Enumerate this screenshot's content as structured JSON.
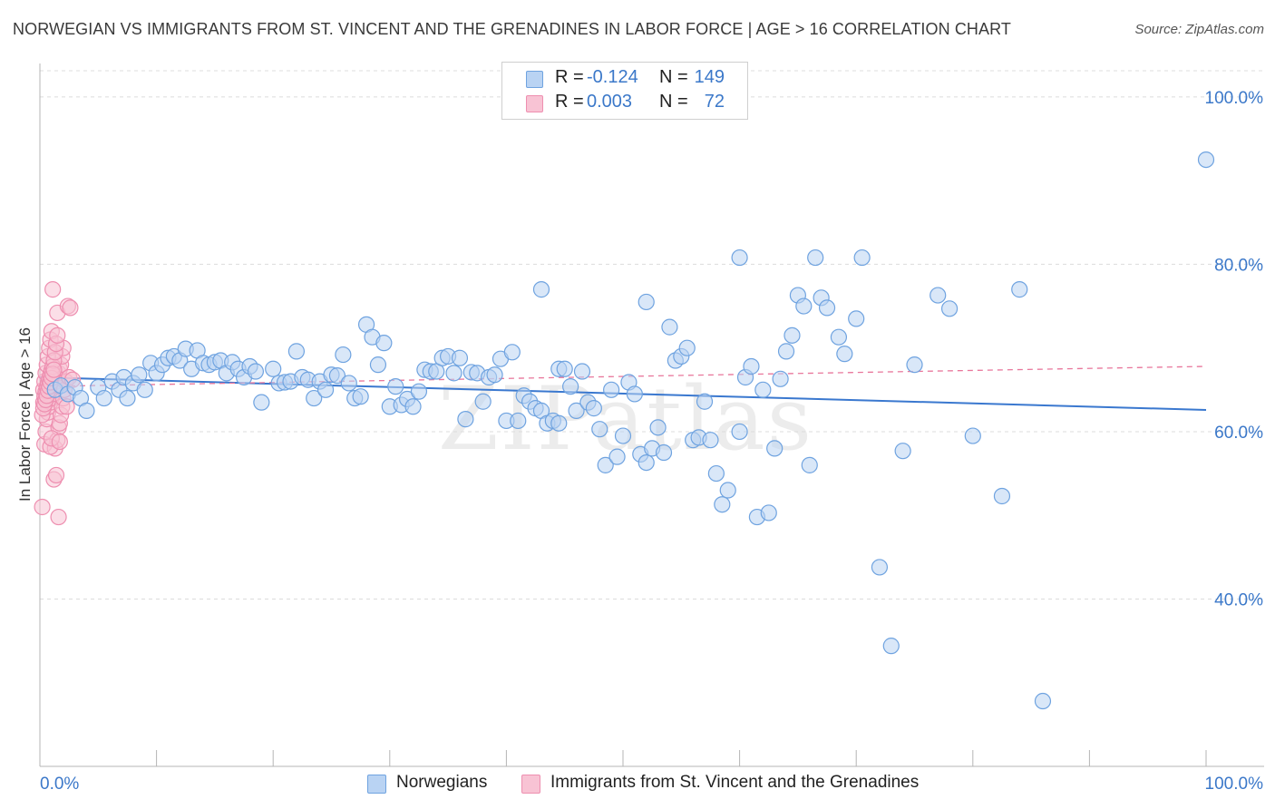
{
  "title": "NORWEGIAN VS IMMIGRANTS FROM ST. VINCENT AND THE GRENADINES IN LABOR FORCE | AGE > 16 CORRELATION CHART",
  "source": "Source: ZipAtlas.com",
  "watermark": "ZIPatlas",
  "stats": [
    {
      "r_label": "R =",
      "r_value": "-0.124",
      "n_label": "N =",
      "n_value": "149",
      "color": "#6fa3e0",
      "fill": "#b9d3f3"
    },
    {
      "r_label": "R =",
      "r_value": "0.003",
      "n_label": "N =",
      "n_value": "72",
      "color": "#ee8fb0",
      "fill": "#f8c3d4"
    }
  ],
  "legend": [
    {
      "label": "Norwegians",
      "color": "#6fa3e0",
      "fill": "#b9d3f3"
    },
    {
      "label": "Immigrants from St. Vincent and the Grenadines",
      "color": "#ee8fb0",
      "fill": "#f8c3d4"
    }
  ],
  "chart_data": {
    "type": "scatter",
    "ylabel": "In Labor Force | Age > 16",
    "xlabel": "",
    "xlim": [
      0,
      100
    ],
    "ylim": [
      20,
      104
    ],
    "x_tick_labels": [
      "0.0%",
      "100.0%"
    ],
    "y_ticks": [
      40,
      60,
      80,
      100
    ],
    "y_tick_labels": [
      "40.0%",
      "60.0%",
      "80.0%",
      "100.0%"
    ],
    "grid": true,
    "series": [
      {
        "name": "Norwegians",
        "color": "#6fa3e0",
        "fill": "#b9d3f3",
        "trend": {
          "x": [
            0,
            100
          ],
          "y": [
            66.5,
            62.6
          ],
          "style": "solid"
        },
        "points": [
          [
            1.3,
            65.0
          ],
          [
            1.8,
            65.5
          ],
          [
            2.4,
            64.5
          ],
          [
            3.0,
            65.3
          ],
          [
            3.5,
            64.0
          ],
          [
            4.0,
            62.5
          ],
          [
            5.0,
            65.3
          ],
          [
            5.5,
            64.0
          ],
          [
            6.2,
            66.0
          ],
          [
            6.8,
            65.0
          ],
          [
            7.2,
            66.5
          ],
          [
            7.5,
            64.0
          ],
          [
            8.0,
            65.8
          ],
          [
            8.5,
            66.8
          ],
          [
            9.0,
            65.0
          ],
          [
            9.5,
            68.2
          ],
          [
            10.0,
            67.0
          ],
          [
            10.5,
            68.0
          ],
          [
            11.0,
            68.8
          ],
          [
            11.5,
            69.0
          ],
          [
            12.0,
            68.5
          ],
          [
            12.5,
            69.9
          ],
          [
            13.0,
            67.5
          ],
          [
            13.5,
            69.7
          ],
          [
            14.0,
            68.2
          ],
          [
            14.5,
            68.0
          ],
          [
            15.0,
            68.3
          ],
          [
            15.5,
            68.5
          ],
          [
            16.0,
            67.0
          ],
          [
            16.5,
            68.3
          ],
          [
            17.0,
            67.5
          ],
          [
            17.5,
            66.5
          ],
          [
            18.0,
            67.8
          ],
          [
            18.5,
            67.2
          ],
          [
            19.0,
            63.5
          ],
          [
            20.0,
            67.5
          ],
          [
            20.5,
            65.8
          ],
          [
            21.0,
            65.9
          ],
          [
            21.5,
            66.0
          ],
          [
            22.0,
            69.6
          ],
          [
            22.5,
            66.5
          ],
          [
            23.0,
            66.2
          ],
          [
            23.5,
            64.0
          ],
          [
            24.0,
            66.0
          ],
          [
            24.5,
            65.0
          ],
          [
            25.0,
            66.8
          ],
          [
            25.5,
            66.7
          ],
          [
            26.0,
            69.2
          ],
          [
            26.5,
            65.8
          ],
          [
            27.0,
            64.0
          ],
          [
            27.5,
            64.2
          ],
          [
            28.0,
            72.8
          ],
          [
            28.5,
            71.3
          ],
          [
            29.0,
            68.0
          ],
          [
            29.5,
            70.6
          ],
          [
            30.0,
            63.0
          ],
          [
            30.5,
            65.4
          ],
          [
            31.0,
            63.2
          ],
          [
            31.5,
            63.9
          ],
          [
            32.0,
            63.0
          ],
          [
            32.5,
            64.8
          ],
          [
            33.0,
            67.4
          ],
          [
            33.5,
            67.2
          ],
          [
            34.0,
            67.2
          ],
          [
            34.5,
            68.8
          ],
          [
            35.0,
            69.0
          ],
          [
            35.5,
            67.0
          ],
          [
            36.0,
            68.8
          ],
          [
            36.5,
            61.5
          ],
          [
            37.0,
            67.1
          ],
          [
            37.5,
            67.0
          ],
          [
            38.0,
            63.6
          ],
          [
            38.5,
            66.5
          ],
          [
            39.0,
            66.8
          ],
          [
            39.5,
            68.7
          ],
          [
            40.0,
            61.3
          ],
          [
            40.5,
            69.5
          ],
          [
            41.0,
            61.3
          ],
          [
            41.5,
            64.3
          ],
          [
            42.0,
            63.6
          ],
          [
            42.5,
            62.8
          ],
          [
            43.0,
            62.5
          ],
          [
            43.5,
            61.0
          ],
          [
            44.0,
            61.3
          ],
          [
            44.5,
            67.5
          ],
          [
            45.0,
            67.5
          ],
          [
            45.5,
            65.4
          ],
          [
            46.0,
            62.5
          ],
          [
            46.5,
            67.2
          ],
          [
            47.0,
            63.5
          ],
          [
            47.5,
            62.8
          ],
          [
            48.0,
            60.3
          ],
          [
            48.5,
            56.0
          ],
          [
            49.0,
            65.0
          ],
          [
            49.5,
            57.0
          ],
          [
            50.0,
            59.5
          ],
          [
            50.5,
            65.9
          ],
          [
            51.0,
            64.5
          ],
          [
            51.5,
            57.3
          ],
          [
            52.0,
            56.3
          ],
          [
            52.5,
            58.0
          ],
          [
            53.0,
            60.5
          ],
          [
            53.5,
            57.5
          ],
          [
            54.5,
            68.5
          ],
          [
            55.0,
            69.0
          ],
          [
            55.5,
            70.0
          ],
          [
            56.0,
            59.0
          ],
          [
            56.5,
            59.3
          ],
          [
            57.0,
            63.6
          ],
          [
            57.5,
            59.0
          ],
          [
            58.0,
            55.0
          ],
          [
            58.5,
            51.3
          ],
          [
            59.0,
            53.0
          ],
          [
            60.0,
            60.0
          ],
          [
            60.5,
            66.5
          ],
          [
            61.0,
            67.8
          ],
          [
            61.5,
            49.8
          ],
          [
            62.0,
            65.0
          ],
          [
            62.5,
            50.3
          ],
          [
            63.0,
            58.0
          ],
          [
            63.5,
            66.3
          ],
          [
            64.0,
            69.6
          ],
          [
            64.5,
            71.5
          ],
          [
            65.0,
            76.3
          ],
          [
            65.5,
            75.0
          ],
          [
            66.0,
            56.0
          ],
          [
            66.5,
            80.8
          ],
          [
            67.0,
            76.0
          ],
          [
            67.5,
            74.8
          ],
          [
            68.5,
            71.3
          ],
          [
            69.0,
            69.3
          ],
          [
            70.0,
            73.5
          ],
          [
            72.0,
            43.8
          ],
          [
            73.0,
            34.4
          ],
          [
            74.0,
            57.7
          ],
          [
            75.0,
            68.0
          ],
          [
            77.0,
            76.3
          ],
          [
            78.0,
            74.7
          ],
          [
            80.0,
            59.5
          ],
          [
            82.5,
            52.3
          ],
          [
            84.0,
            77.0
          ],
          [
            86.0,
            27.8
          ],
          [
            100.0,
            92.5
          ],
          [
            54.0,
            72.5
          ],
          [
            52.0,
            75.5
          ],
          [
            43.0,
            77.0
          ],
          [
            60.0,
            80.8
          ],
          [
            70.5,
            80.8
          ],
          [
            44.5,
            61.0
          ]
        ]
      },
      {
        "name": "Immigrants from St. Vincent and the Grenadines",
        "color": "#ee8fb0",
        "fill": "#f8c3d4",
        "trend": {
          "x": [
            0,
            100
          ],
          "y": [
            65.4,
            67.8
          ],
          "style": "dashed"
        },
        "points": [
          [
            0.2,
            51.0
          ],
          [
            0.4,
            58.5
          ],
          [
            0.5,
            60.0
          ],
          [
            0.6,
            61.5
          ],
          [
            0.7,
            62.3
          ],
          [
            0.8,
            63.0
          ],
          [
            0.9,
            63.5
          ],
          [
            1.0,
            64.0
          ],
          [
            1.1,
            64.5
          ],
          [
            1.2,
            65.0
          ],
          [
            1.3,
            65.5
          ],
          [
            1.4,
            66.0
          ],
          [
            1.5,
            66.5
          ],
          [
            1.6,
            67.0
          ],
          [
            1.7,
            67.5
          ],
          [
            1.8,
            68.0
          ],
          [
            1.9,
            69.0
          ],
          [
            2.0,
            70.0
          ],
          [
            0.3,
            65.0
          ],
          [
            0.4,
            66.0
          ],
          [
            0.5,
            67.0
          ],
          [
            0.6,
            68.0
          ],
          [
            0.7,
            69.0
          ],
          [
            0.8,
            70.0
          ],
          [
            0.9,
            71.0
          ],
          [
            1.0,
            72.0
          ],
          [
            0.3,
            63.5
          ],
          [
            0.4,
            64.2
          ],
          [
            0.5,
            64.8
          ],
          [
            0.6,
            65.3
          ],
          [
            0.7,
            65.8
          ],
          [
            0.8,
            66.3
          ],
          [
            0.9,
            66.8
          ],
          [
            1.0,
            67.3
          ],
          [
            1.1,
            67.8
          ],
          [
            1.2,
            68.5
          ],
          [
            1.3,
            69.5
          ],
          [
            1.4,
            70.5
          ],
          [
            1.5,
            71.5
          ],
          [
            0.2,
            62.0
          ],
          [
            0.3,
            62.8
          ],
          [
            0.4,
            63.3
          ],
          [
            0.5,
            63.8
          ],
          [
            0.6,
            64.3
          ],
          [
            0.7,
            64.9
          ],
          [
            0.8,
            65.4
          ],
          [
            0.9,
            65.9
          ],
          [
            1.0,
            66.4
          ],
          [
            1.1,
            66.9
          ],
          [
            1.2,
            67.4
          ],
          [
            1.3,
            58.0
          ],
          [
            1.5,
            59.0
          ],
          [
            1.6,
            60.5
          ],
          [
            1.7,
            61.0
          ],
          [
            1.8,
            62.0
          ],
          [
            1.9,
            63.0
          ],
          [
            2.0,
            64.0
          ],
          [
            2.1,
            65.0
          ],
          [
            2.2,
            66.0
          ],
          [
            1.1,
            77.0
          ],
          [
            1.5,
            74.2
          ],
          [
            2.4,
            75.0
          ],
          [
            2.6,
            74.8
          ],
          [
            1.2,
            54.3
          ],
          [
            1.4,
            54.8
          ],
          [
            1.6,
            49.8
          ],
          [
            0.9,
            58.2
          ],
          [
            1.0,
            59.2
          ],
          [
            1.7,
            58.8
          ],
          [
            2.5,
            66.5
          ],
          [
            2.3,
            63.0
          ],
          [
            2.8,
            66.2
          ]
        ]
      }
    ]
  }
}
